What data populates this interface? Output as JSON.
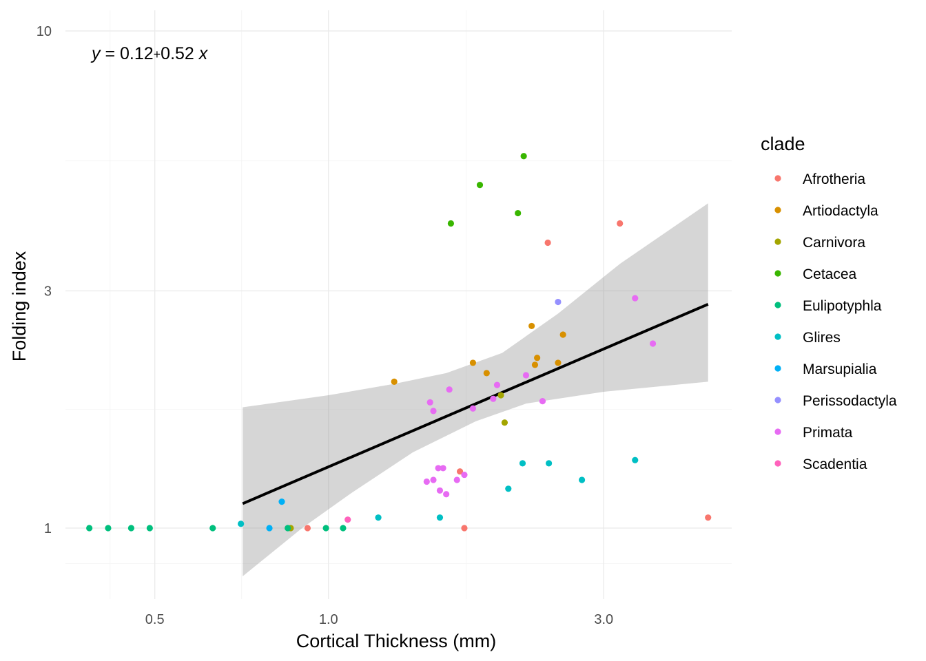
{
  "chart_data": {
    "type": "scatter",
    "title": "",
    "xlabel": "Cortical Thickness (mm)",
    "ylabel": "Folding index",
    "x_scale": "log",
    "y_scale": "log",
    "xlim": [
      0.35,
      5.0
    ],
    "ylim": [
      0.72,
      11.0
    ],
    "x_ticks": [
      0.5,
      1.0,
      3.0
    ],
    "x_tick_labels": [
      "0.5",
      "1.0",
      "3.0"
    ],
    "y_ticks": [
      1,
      3,
      10
    ],
    "y_tick_labels": [
      "1",
      "3",
      "10"
    ],
    "grid": true,
    "legend_position": "right",
    "legend_title": "clade",
    "annotation": {
      "y": "y",
      "eq": " = 0.12",
      "plus": "+",
      "coef": "0.52",
      "x": "x"
    },
    "fit": {
      "x_from": 0.71,
      "x_to": 4.55,
      "line": [
        [
          0.71,
          1.12
        ],
        [
          4.55,
          2.82
        ]
      ],
      "band_upper": [
        [
          0.71,
          1.75
        ],
        [
          1.0,
          1.85
        ],
        [
          1.3,
          1.95
        ],
        [
          1.6,
          2.05
        ],
        [
          2.0,
          2.25
        ],
        [
          2.5,
          2.7
        ],
        [
          3.2,
          3.4
        ],
        [
          4.55,
          4.5
        ]
      ],
      "band_lower": [
        [
          0.71,
          0.8
        ],
        [
          0.9,
          1.0
        ],
        [
          1.1,
          1.18
        ],
        [
          1.4,
          1.42
        ],
        [
          1.8,
          1.64
        ],
        [
          2.2,
          1.78
        ],
        [
          3.0,
          1.88
        ],
        [
          4.55,
          1.97
        ]
      ]
    },
    "series": [
      {
        "name": "Afrotheria",
        "color": "#F8766D",
        "points": [
          [
            0.92,
            1.0
          ],
          [
            1.72,
            1.0
          ],
          [
            1.69,
            1.3
          ],
          [
            2.4,
            3.75
          ],
          [
            3.2,
            4.1
          ],
          [
            4.55,
            1.05
          ]
        ]
      },
      {
        "name": "Artiodactyla",
        "color": "#D89000",
        "points": [
          [
            1.3,
            1.97
          ],
          [
            1.78,
            2.15
          ],
          [
            1.88,
            2.05
          ],
          [
            2.25,
            2.55
          ],
          [
            2.3,
            2.2
          ],
          [
            2.28,
            2.13
          ],
          [
            2.55,
            2.45
          ],
          [
            2.5,
            2.15
          ]
        ]
      },
      {
        "name": "Carnivora",
        "color": "#A3A500",
        "points": [
          [
            2.02,
            1.63
          ],
          [
            1.99,
            1.85
          ],
          [
            0.86,
            1.0
          ]
        ]
      },
      {
        "name": "Cetacea",
        "color": "#39B600",
        "points": [
          [
            1.63,
            4.1
          ],
          [
            1.83,
            4.9
          ],
          [
            2.13,
            4.3
          ],
          [
            2.18,
            5.6
          ]
        ]
      },
      {
        "name": "Eulipotyphla",
        "color": "#00BF7D",
        "points": [
          [
            0.385,
            1.0
          ],
          [
            0.415,
            1.0
          ],
          [
            0.455,
            1.0
          ],
          [
            0.49,
            1.0
          ],
          [
            0.63,
            1.0
          ],
          [
            0.85,
            1.0
          ],
          [
            0.99,
            1.0
          ],
          [
            1.06,
            1.0
          ]
        ]
      },
      {
        "name": "Glires",
        "color": "#00BFC4",
        "points": [
          [
            0.705,
            1.02
          ],
          [
            1.22,
            1.05
          ],
          [
            1.56,
            1.05
          ],
          [
            2.05,
            1.2
          ],
          [
            2.17,
            1.35
          ],
          [
            2.41,
            1.35
          ],
          [
            2.75,
            1.25
          ],
          [
            3.4,
            1.37
          ]
        ]
      },
      {
        "name": "Marsupialia",
        "color": "#00B0F6",
        "points": [
          [
            0.79,
            1.0
          ],
          [
            0.83,
            1.13
          ]
        ]
      },
      {
        "name": "Perissodactyla",
        "color": "#9590FF",
        "points": [
          [
            2.5,
            2.85
          ]
        ]
      },
      {
        "name": "Primata",
        "color": "#E76BF3",
        "points": [
          [
            1.5,
            1.79
          ],
          [
            1.52,
            1.72
          ],
          [
            1.62,
            1.9
          ],
          [
            1.78,
            1.74
          ],
          [
            1.93,
            1.82
          ],
          [
            1.96,
            1.94
          ],
          [
            2.2,
            2.03
          ],
          [
            2.35,
            1.8
          ],
          [
            3.4,
            2.9
          ],
          [
            3.65,
            2.35
          ],
          [
            1.58,
            1.32
          ],
          [
            1.55,
            1.32
          ],
          [
            1.52,
            1.25
          ],
          [
            1.48,
            1.24
          ],
          [
            1.56,
            1.19
          ],
          [
            1.67,
            1.25
          ],
          [
            1.72,
            1.28
          ],
          [
            1.6,
            1.17
          ]
        ]
      },
      {
        "name": "Scadentia",
        "color": "#FF62BC",
        "points": [
          [
            1.08,
            1.04
          ]
        ]
      }
    ]
  }
}
